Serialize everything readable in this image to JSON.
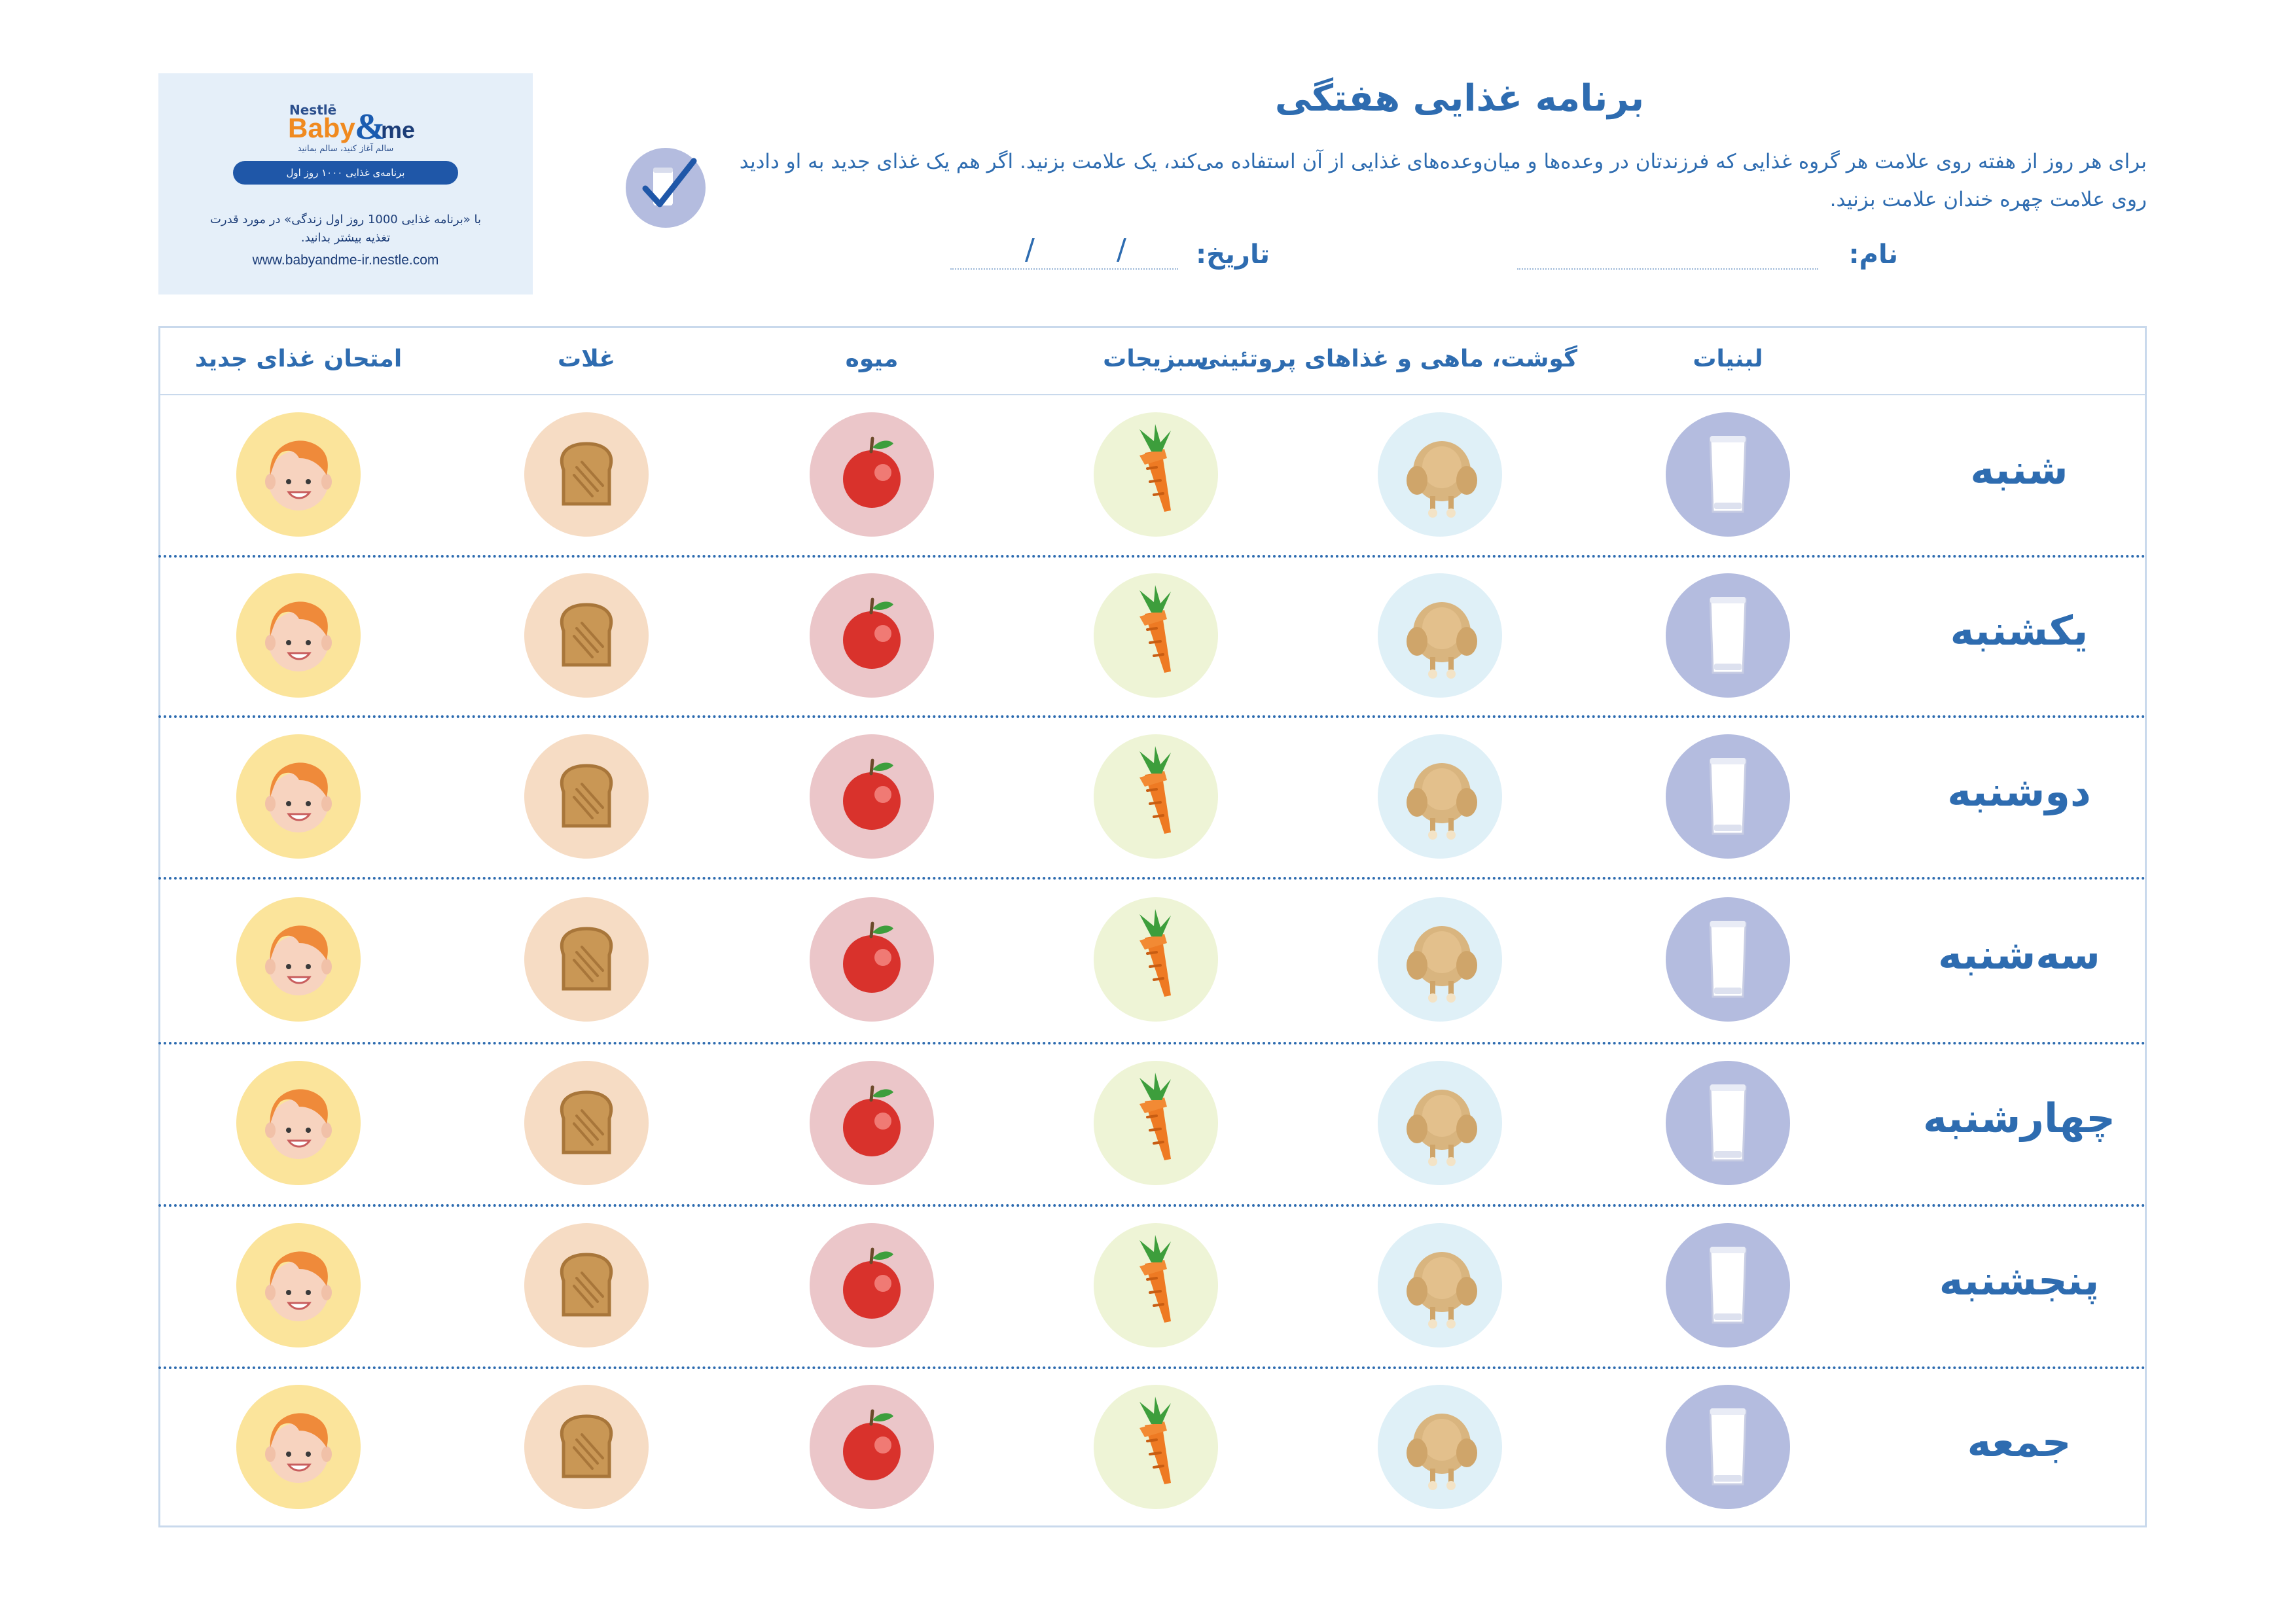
{
  "brand": {
    "nestle": "Nestlē",
    "baby": "Baby",
    "amp": "&",
    "me": "me",
    "tagline": "سالم آغاز کنید، سالم بمانید",
    "program": "برنامه‌ی غذایی ۱۰۰۰ روز اول",
    "description": "با «برنامه غذایی 1000 روز اول زندگی» در مورد قدرت تغذیه بیشتر بدانید.",
    "url": "www.babyandme-ir.nestle.com"
  },
  "header": {
    "title": "برنامه غذایی هفتگی",
    "instructions": "برای هر روز از هفته روی علامت هر گروه غذایی که فرزندتان در وعده‌ها و میان‌وعده‌های غذایی از آن استفاده می‌کند، یک علامت بزنید. اگر هم یک غذای جدید به او دادید روی علامت چهره خندان علامت بزنید.",
    "name_label": "نام:",
    "date_label": "تاریخ:",
    "date_separator": "/"
  },
  "columns": [
    {
      "key": "dairy",
      "label": "لبنیات",
      "icon": "milk-glass-icon",
      "color": "#b4bcdf"
    },
    {
      "key": "protein",
      "label": "گوشت، ماهی و غذاهای پروتئینی",
      "icon": "chicken-icon",
      "color": "#dff0f7"
    },
    {
      "key": "vegetables",
      "label": "سبزیجات",
      "icon": "carrot-icon",
      "color": "#eef4d6"
    },
    {
      "key": "fruit",
      "label": "میوه",
      "icon": "apple-icon",
      "color": "#ebc6c9"
    },
    {
      "key": "grains",
      "label": "غلات",
      "icon": "toast-icon",
      "color": "#f6dcc4"
    },
    {
      "key": "new_food",
      "label": "امتحان غذای جدید",
      "icon": "smiling-child-icon",
      "color": "#fbe49b"
    }
  ],
  "days": [
    "شنبه",
    "یکشنبه",
    "دوشنبه",
    "سه‌شنبه",
    "چهارشنبه",
    "پنجشنبه",
    "جمعه"
  ],
  "colors": {
    "primary_text": "#2e6cb0",
    "table_border": "#c9d9ec",
    "logo_background": "#e5eff9",
    "logo_pill": "#1f57a8",
    "baby_orange": "#f08a1f"
  }
}
